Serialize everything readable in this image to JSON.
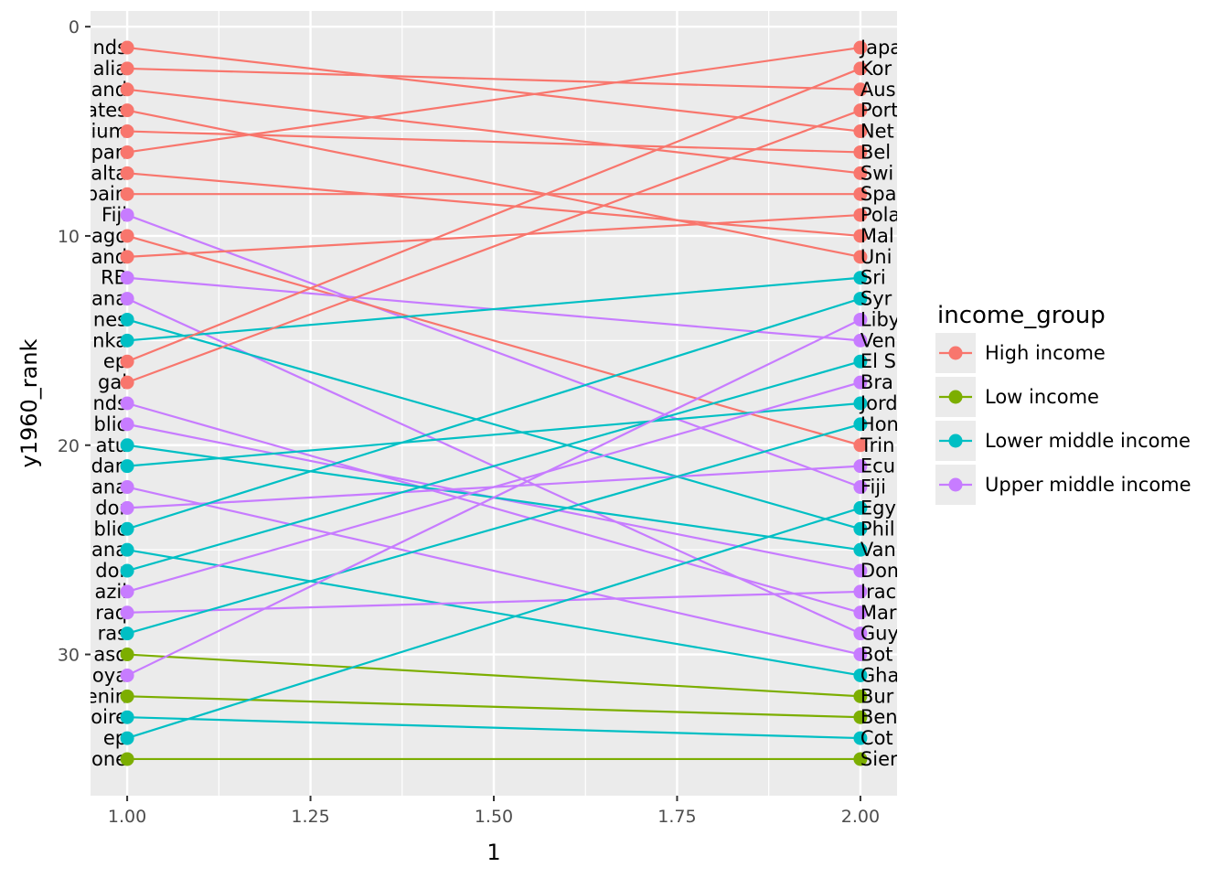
{
  "chart_data": {
    "type": "line",
    "xlabel": "1",
    "ylabel": "y1960_rank",
    "xlim": [
      0.95,
      2.05
    ],
    "ylim": [
      36.75,
      -0.75
    ],
    "y_reversed": true,
    "x_ticks": [
      1.0,
      1.25,
      1.5,
      1.75,
      2.0
    ],
    "x_tick_labels": [
      "1.00",
      "1.25",
      "1.50",
      "1.75",
      "2.00"
    ],
    "y_ticks": [
      0,
      10,
      20,
      30
    ],
    "y_tick_labels": [
      "0",
      "10",
      "20",
      "30"
    ],
    "grid": true,
    "legend": {
      "title": "income_group",
      "placement": "right",
      "entries": [
        "High income",
        "Low income",
        "Lower middle income",
        "Upper middle income"
      ]
    },
    "colors": {
      "High income": "#F8766D",
      "Low income": "#7CAE00",
      "Lower middle income": "#00BFC4",
      "Upper middle income": "#C77CFF"
    },
    "series": [
      {
        "left_label": "nds",
        "right_label": "Net",
        "group": "High income",
        "y": [
          1,
          5
        ]
      },
      {
        "left_label": "alia",
        "right_label": "Aus",
        "group": "High income",
        "y": [
          2,
          3
        ]
      },
      {
        "left_label": "and",
        "right_label": "Swi",
        "group": "High income",
        "y": [
          3,
          7
        ]
      },
      {
        "left_label": "ates",
        "right_label": "Uni",
        "group": "High income",
        "y": [
          4,
          11
        ]
      },
      {
        "left_label": "ium",
        "right_label": "Bel",
        "group": "High income",
        "y": [
          5,
          6
        ]
      },
      {
        "left_label": "pan",
        "right_label": "Japa",
        "group": "High income",
        "y": [
          6,
          1
        ]
      },
      {
        "left_label": "alta",
        "right_label": "Mal",
        "group": "High income",
        "y": [
          7,
          10
        ]
      },
      {
        "left_label": "pain",
        "right_label": "Spa",
        "group": "High income",
        "y": [
          8,
          8
        ]
      },
      {
        "left_label": "Fiji",
        "right_label": "Fiji",
        "group": "Upper middle income",
        "y": [
          9,
          22
        ]
      },
      {
        "left_label": "ago",
        "right_label": "Trin",
        "group": "High income",
        "y": [
          10,
          20
        ]
      },
      {
        "left_label": "and",
        "right_label": "Pola",
        "group": "High income",
        "y": [
          11,
          9
        ]
      },
      {
        "left_label": "RB",
        "right_label": "Ven",
        "group": "Upper middle income",
        "y": [
          12,
          15
        ]
      },
      {
        "left_label": "ana",
        "right_label": "Guy",
        "group": "Upper middle income",
        "y": [
          13,
          29
        ]
      },
      {
        "left_label": "nes",
        "right_label": "Phil",
        "group": "Lower middle income",
        "y": [
          14,
          24
        ]
      },
      {
        "left_label": "nka",
        "right_label": "Sri",
        "group": "Lower middle income",
        "y": [
          15,
          12
        ]
      },
      {
        "left_label": "ep",
        "right_label": "Kor",
        "group": "High income",
        "y": [
          16,
          2
        ]
      },
      {
        "left_label": "gal",
        "right_label": "Port",
        "group": "High income",
        "y": [
          17,
          4
        ]
      },
      {
        "left_label": "nds",
        "right_label": "Mar",
        "group": "Upper middle income",
        "y": [
          18,
          28
        ]
      },
      {
        "left_label": "blic",
        "right_label": "Dom",
        "group": "Upper middle income",
        "y": [
          19,
          26
        ]
      },
      {
        "left_label": "atu",
        "right_label": "Van",
        "group": "Lower middle income",
        "y": [
          20,
          25
        ]
      },
      {
        "left_label": "dan",
        "right_label": "Jord",
        "group": "Lower middle income",
        "y": [
          21,
          18
        ]
      },
      {
        "left_label": "ana",
        "right_label": "Bot",
        "group": "Upper middle income",
        "y": [
          22,
          30
        ]
      },
      {
        "left_label": "dor",
        "right_label": "Ecu",
        "group": "Upper middle income",
        "y": [
          23,
          21
        ]
      },
      {
        "left_label": "blic",
        "right_label": "Syr",
        "group": "Lower middle income",
        "y": [
          24,
          13
        ]
      },
      {
        "left_label": "ana",
        "right_label": "Gha",
        "group": "Lower middle income",
        "y": [
          25,
          31
        ]
      },
      {
        "left_label": "dor",
        "right_label": "El S",
        "group": "Lower middle income",
        "y": [
          26,
          16
        ]
      },
      {
        "left_label": "azil",
        "right_label": "Bra",
        "group": "Upper middle income",
        "y": [
          27,
          17
        ]
      },
      {
        "left_label": "raq",
        "right_label": "Irac",
        "group": "Upper middle income",
        "y": [
          28,
          27
        ]
      },
      {
        "left_label": "ras",
        "right_label": "Hon",
        "group": "Lower middle income",
        "y": [
          29,
          19
        ]
      },
      {
        "left_label": "aso",
        "right_label": "Bur",
        "group": "Low income",
        "y": [
          30,
          32
        ]
      },
      {
        "left_label": "oya",
        "right_label": "Liby",
        "group": "Upper middle income",
        "y": [
          31,
          14
        ]
      },
      {
        "left_label": "enin",
        "right_label": "Ben",
        "group": "Low income",
        "y": [
          32,
          33
        ]
      },
      {
        "left_label": "oire",
        "right_label": "Cot",
        "group": "Lower middle income",
        "y": [
          33,
          34
        ]
      },
      {
        "left_label": "ep",
        "right_label": "Egy",
        "group": "Lower middle income",
        "y": [
          34,
          23
        ]
      },
      {
        "left_label": "one",
        "right_label": "Sier",
        "group": "Low income",
        "y": [
          35,
          35
        ]
      }
    ]
  }
}
